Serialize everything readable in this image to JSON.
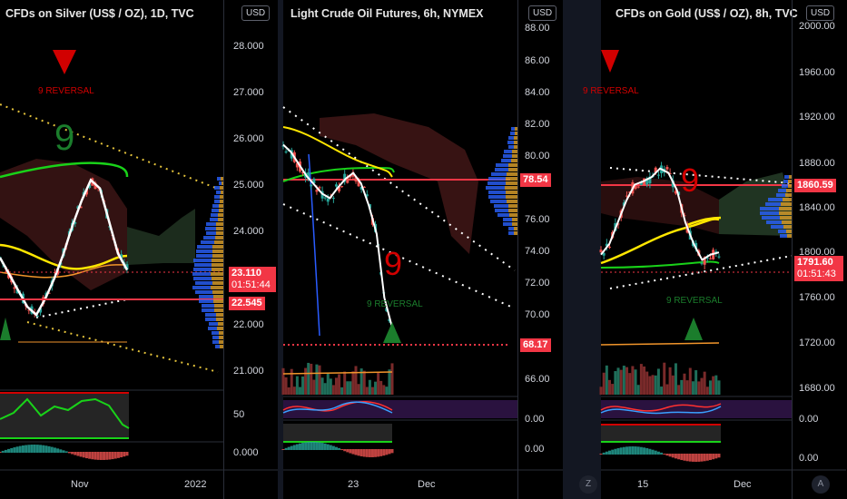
{
  "currency": "USD",
  "x_labels": {
    "silver": [
      "Nov",
      "2022"
    ],
    "crude": [
      "23",
      "Dec"
    ],
    "gold": [
      "15",
      "Dec"
    ]
  },
  "buttons": {
    "z": "Z",
    "a": "A"
  },
  "annotations": {
    "silver_top": "9 REVERSAL",
    "crude_mid": "9 REVERSAL",
    "gold_top": "9 REVERSAL",
    "gold_mid": "9 REVERSAL",
    "nine": "9"
  },
  "colors": {
    "up": "#26a69a",
    "down": "#ef5350",
    "badge_red": "#f23645",
    "reversal_green": "#1b7d2c",
    "reversal_red": "#d10000"
  },
  "chart_data": [
    {
      "type": "line",
      "title": "CFDs on Silver (US$ / OZ), 1D, TVC",
      "price_ticks": [
        "28.000",
        "27.000",
        "26.000",
        "25.000",
        "24.000",
        "23.110",
        "22.545",
        "22.000",
        "21.000"
      ],
      "osc_ticks": [
        "50",
        "0.000"
      ],
      "ylim": [
        20.6,
        28.6
      ],
      "series": [
        {
          "values": [
            23.4,
            23.0,
            22.6,
            22.2,
            22.0,
            22.4,
            22.9,
            23.5,
            24.2,
            24.8,
            25.3,
            25.1,
            24.3,
            23.5,
            23.1
          ]
        }
      ],
      "last_price": 23.11,
      "countdown": "01:51:44",
      "level": 22.545
    },
    {
      "type": "line",
      "title": "Light Crude Oil Futures, 6h, NYMEX",
      "price_ticks": [
        "88.00",
        "86.00",
        "84.00",
        "82.00",
        "80.00",
        "78.54",
        "76.00",
        "74.00",
        "72.00",
        "70.00",
        "68.17",
        "66.00"
      ],
      "osc_ticks": [
        "0.00",
        "0.00"
      ],
      "ylim": [
        64.6,
        88.4
      ],
      "series": [
        {
          "values": [
            80.5,
            80.0,
            79.2,
            78.4,
            77.8,
            77.2,
            76.9,
            77.6,
            78.2,
            78.6,
            77.9,
            76.4,
            74.5,
            70.2,
            68.2
          ]
        }
      ],
      "last_price": 68.17,
      "level": 78.54
    },
    {
      "type": "line",
      "title": "CFDs on Gold (US$ / OZ), 8h, TVC",
      "price_ticks": [
        "2000.00",
        "1960.00",
        "1920.00",
        "1880.00",
        "1860.59",
        "1840.00",
        "1800.00",
        "1791.60",
        "1760.00",
        "1720.00",
        "1680.00"
      ],
      "osc_ticks": [
        "0.00",
        "0.00"
      ],
      "ylim": [
        1664,
        2003
      ],
      "series": [
        {
          "values": [
            1790,
            1800,
            1820,
            1840,
            1855,
            1858,
            1862,
            1870,
            1866,
            1850,
            1820,
            1800,
            1785,
            1790,
            1792
          ]
        }
      ],
      "last_price": 1791.6,
      "countdown": "01:51:43",
      "level": 1860.59
    }
  ]
}
